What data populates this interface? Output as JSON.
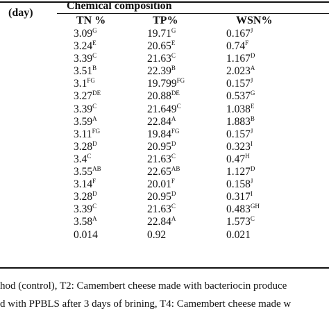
{
  "header": {
    "row_header": "(day)",
    "section_title": "Chemical composition",
    "columns": [
      "TN %",
      "TP%",
      "WSN%"
    ]
  },
  "rows": [
    {
      "tn": "3.09",
      "tn_sup": "G",
      "tp": "19.71",
      "tp_sup": "G",
      "wsn": "0.167",
      "wsn_sup": "J"
    },
    {
      "tn": "3.24",
      "tn_sup": "E",
      "tp": "20.65",
      "tp_sup": "E",
      "wsn": "0.74",
      "wsn_sup": "F"
    },
    {
      "tn": "3.39",
      "tn_sup": "C",
      "tp": "21.63",
      "tp_sup": "C",
      "wsn": "1.167",
      "wsn_sup": "D"
    },
    {
      "tn": "3.51",
      "tn_sup": "B",
      "tp": "22.39",
      "tp_sup": "B",
      "wsn": "2.023",
      "wsn_sup": "A"
    },
    {
      "tn": "3.1",
      "tn_sup": "FG",
      "tp": "19.799",
      "tp_sup": "FG",
      "wsn": "0.157",
      "wsn_sup": "J"
    },
    {
      "tn": "3.27",
      "tn_sup": "DE",
      "tp": "20.88",
      "tp_sup": "DE",
      "wsn": "0.537",
      "wsn_sup": "G"
    },
    {
      "tn": "3.39",
      "tn_sup": "C",
      "tp": "21.649",
      "tp_sup": "C",
      "wsn": "1.038",
      "wsn_sup": "E"
    },
    {
      "tn": "3.59",
      "tn_sup": "A",
      "tp": "22.84",
      "tp_sup": "A",
      "wsn": "1.883",
      "wsn_sup": "B"
    },
    {
      "tn": "3.11",
      "tn_sup": "FG",
      "tp": "19.84",
      "tp_sup": "FG",
      "wsn": "0.157",
      "wsn_sup": "J"
    },
    {
      "tn": "3.28",
      "tn_sup": "D",
      "tp": "20.95",
      "tp_sup": "D",
      "wsn": "0.323",
      "wsn_sup": "I"
    },
    {
      "tn": "3.4",
      "tn_sup": "C",
      "tp": "21.63",
      "tp_sup": "C",
      "wsn": "0.47",
      "wsn_sup": "H"
    },
    {
      "tn": "3.55",
      "tn_sup": "AB",
      "tp": "22.65",
      "tp_sup": "AB",
      "wsn": "1.127",
      "wsn_sup": "D"
    },
    {
      "tn": "3.14",
      "tn_sup": "F",
      "tp": "20.01",
      "tp_sup": "F",
      "wsn": "0.158",
      "wsn_sup": "J"
    },
    {
      "tn": "3.28",
      "tn_sup": "D",
      "tp": "20.95",
      "tp_sup": "D",
      "wsn": "0.317",
      "wsn_sup": "I"
    },
    {
      "tn": "3.39",
      "tn_sup": "C",
      "tp": "21.63",
      "tp_sup": "C",
      "wsn": "0.483",
      "wsn_sup": "GH"
    },
    {
      "tn": "3.58",
      "tn_sup": "A",
      "tp": "22.84",
      "tp_sup": "A",
      "wsn": "1.573",
      "wsn_sup": "C"
    },
    {
      "tn": "0.014",
      "tn_sup": "",
      "tp": "0.92",
      "tp_sup": "",
      "wsn": "0.021",
      "wsn_sup": ""
    }
  ],
  "footnote": {
    "line1": "hod (control), T2: Camembert cheese made with bacteriocin produce",
    "line2": "d with PPBLS after 3 days of brining, T4: Camembert cheese made w"
  }
}
